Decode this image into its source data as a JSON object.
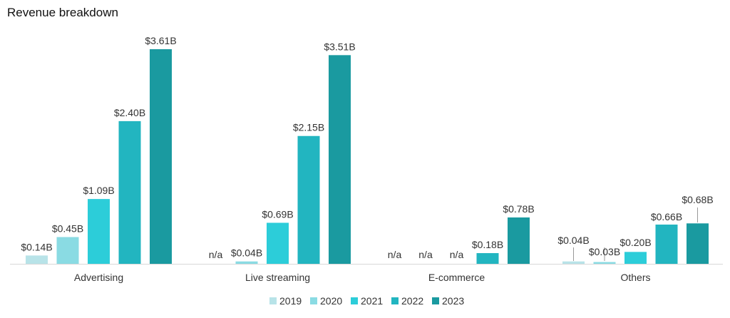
{
  "chart_data": {
    "type": "bar",
    "title": "Revenue breakdown",
    "xlabel": "",
    "ylabel": "",
    "categories": [
      "Advertising",
      "Live streaming",
      "E-commerce",
      "Others"
    ],
    "series": [
      {
        "name": "2019",
        "color": "#b8e3e8",
        "values": [
          0.14,
          null,
          null,
          0.04
        ],
        "labels": [
          "$0.14B",
          "n/a",
          "n/a",
          "$0.04B"
        ]
      },
      {
        "name": "2020",
        "color": "#8adbe3",
        "values": [
          0.45,
          0.04,
          null,
          0.03
        ],
        "labels": [
          "$0.45B",
          "$0.04B",
          "n/a",
          "$0.03B"
        ]
      },
      {
        "name": "2021",
        "color": "#2ccdd9",
        "values": [
          1.09,
          0.69,
          null,
          0.2
        ],
        "labels": [
          "$1.09B",
          "$0.69B",
          "n/a",
          "$0.20B"
        ]
      },
      {
        "name": "2022",
        "color": "#22b5c0",
        "values": [
          2.4,
          2.15,
          0.18,
          0.66
        ],
        "labels": [
          "$2.40B",
          "$2.15B",
          "$0.18B",
          "$0.66B"
        ]
      },
      {
        "name": "2023",
        "color": "#1a9aa0",
        "values": [
          3.61,
          3.51,
          0.78,
          0.68
        ],
        "labels": [
          "$3.61B",
          "$3.51B",
          "$0.78B",
          "$0.68B"
        ]
      }
    ],
    "ylim": [
      0,
      3.61
    ],
    "grid": false,
    "legend": "bottom-center"
  }
}
